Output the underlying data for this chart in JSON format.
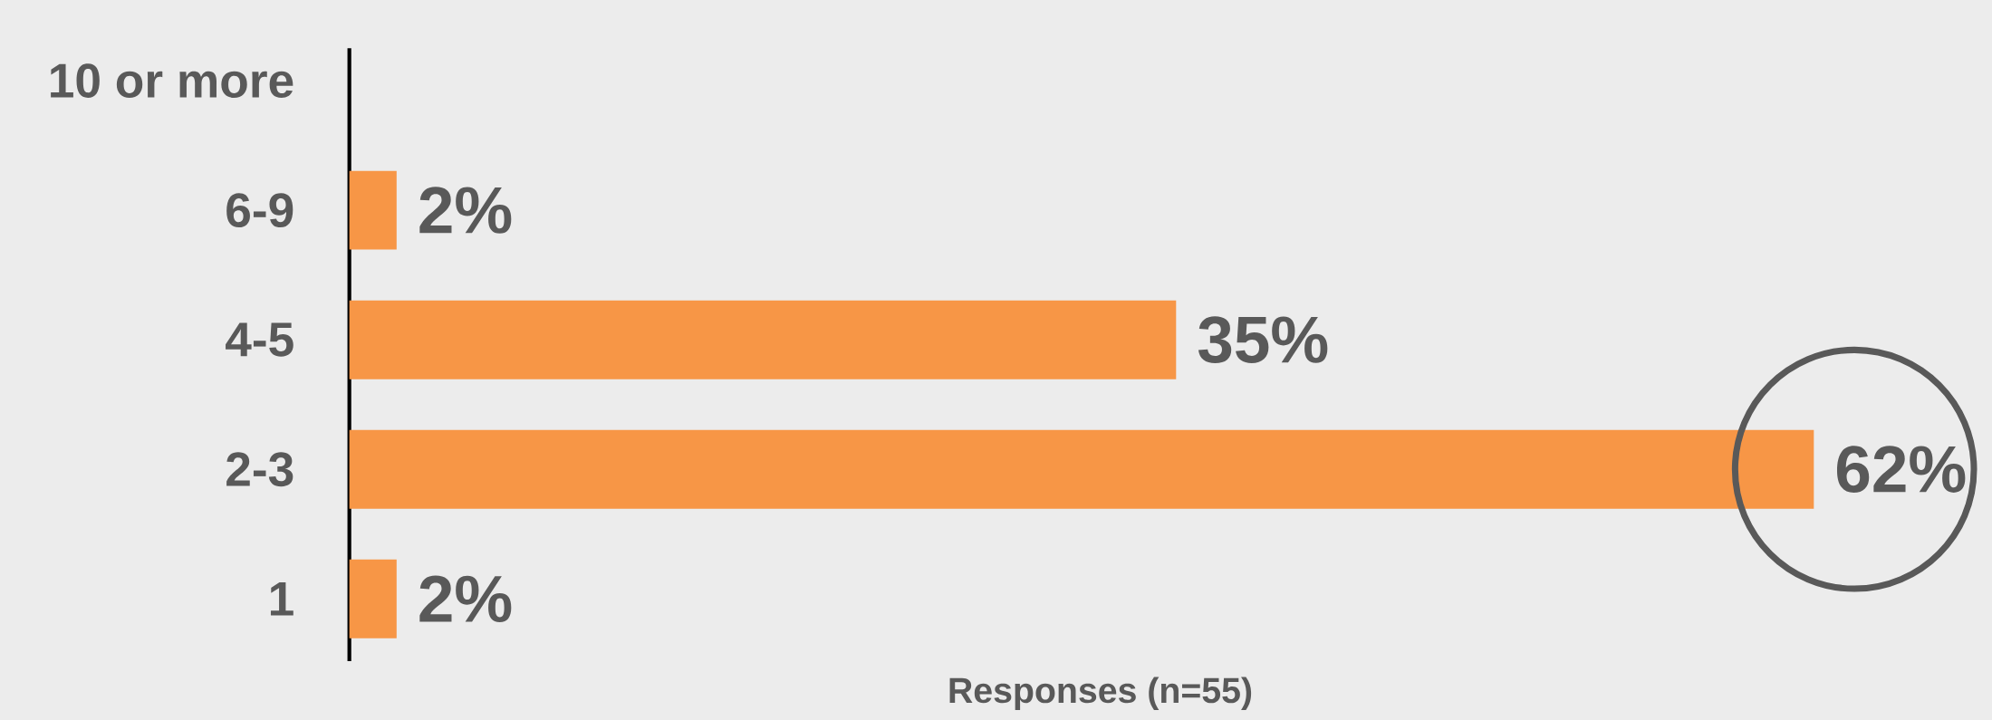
{
  "chart_data": {
    "type": "bar",
    "orientation": "horizontal",
    "categories": [
      "10 or more",
      "6-9",
      "4-5",
      "2-3",
      "1"
    ],
    "values": [
      0,
      2,
      35,
      62,
      2
    ],
    "value_labels": [
      null,
      "2%",
      "35%",
      "62%",
      "2%"
    ],
    "color": "#f79646",
    "xlabel": "Responses (n=55)"
  }
}
